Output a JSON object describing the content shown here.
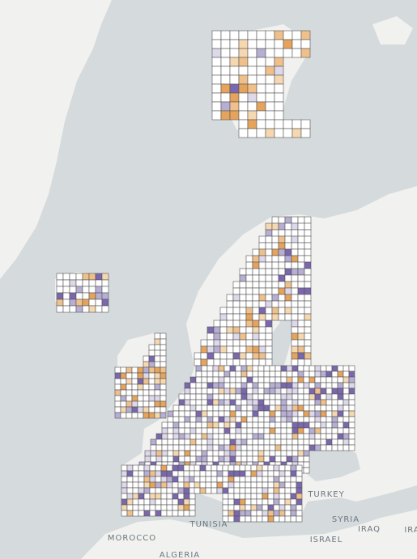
{
  "labels": {
    "turkey": "TURKEY",
    "syria": "SYRIA",
    "iraq": "IRAQ",
    "iran": "IRA",
    "israel": "ISRAEL",
    "tunisia": "TUNISIA",
    "morocco": "MOROCCO",
    "algeria": "ALGERIA"
  }
}
